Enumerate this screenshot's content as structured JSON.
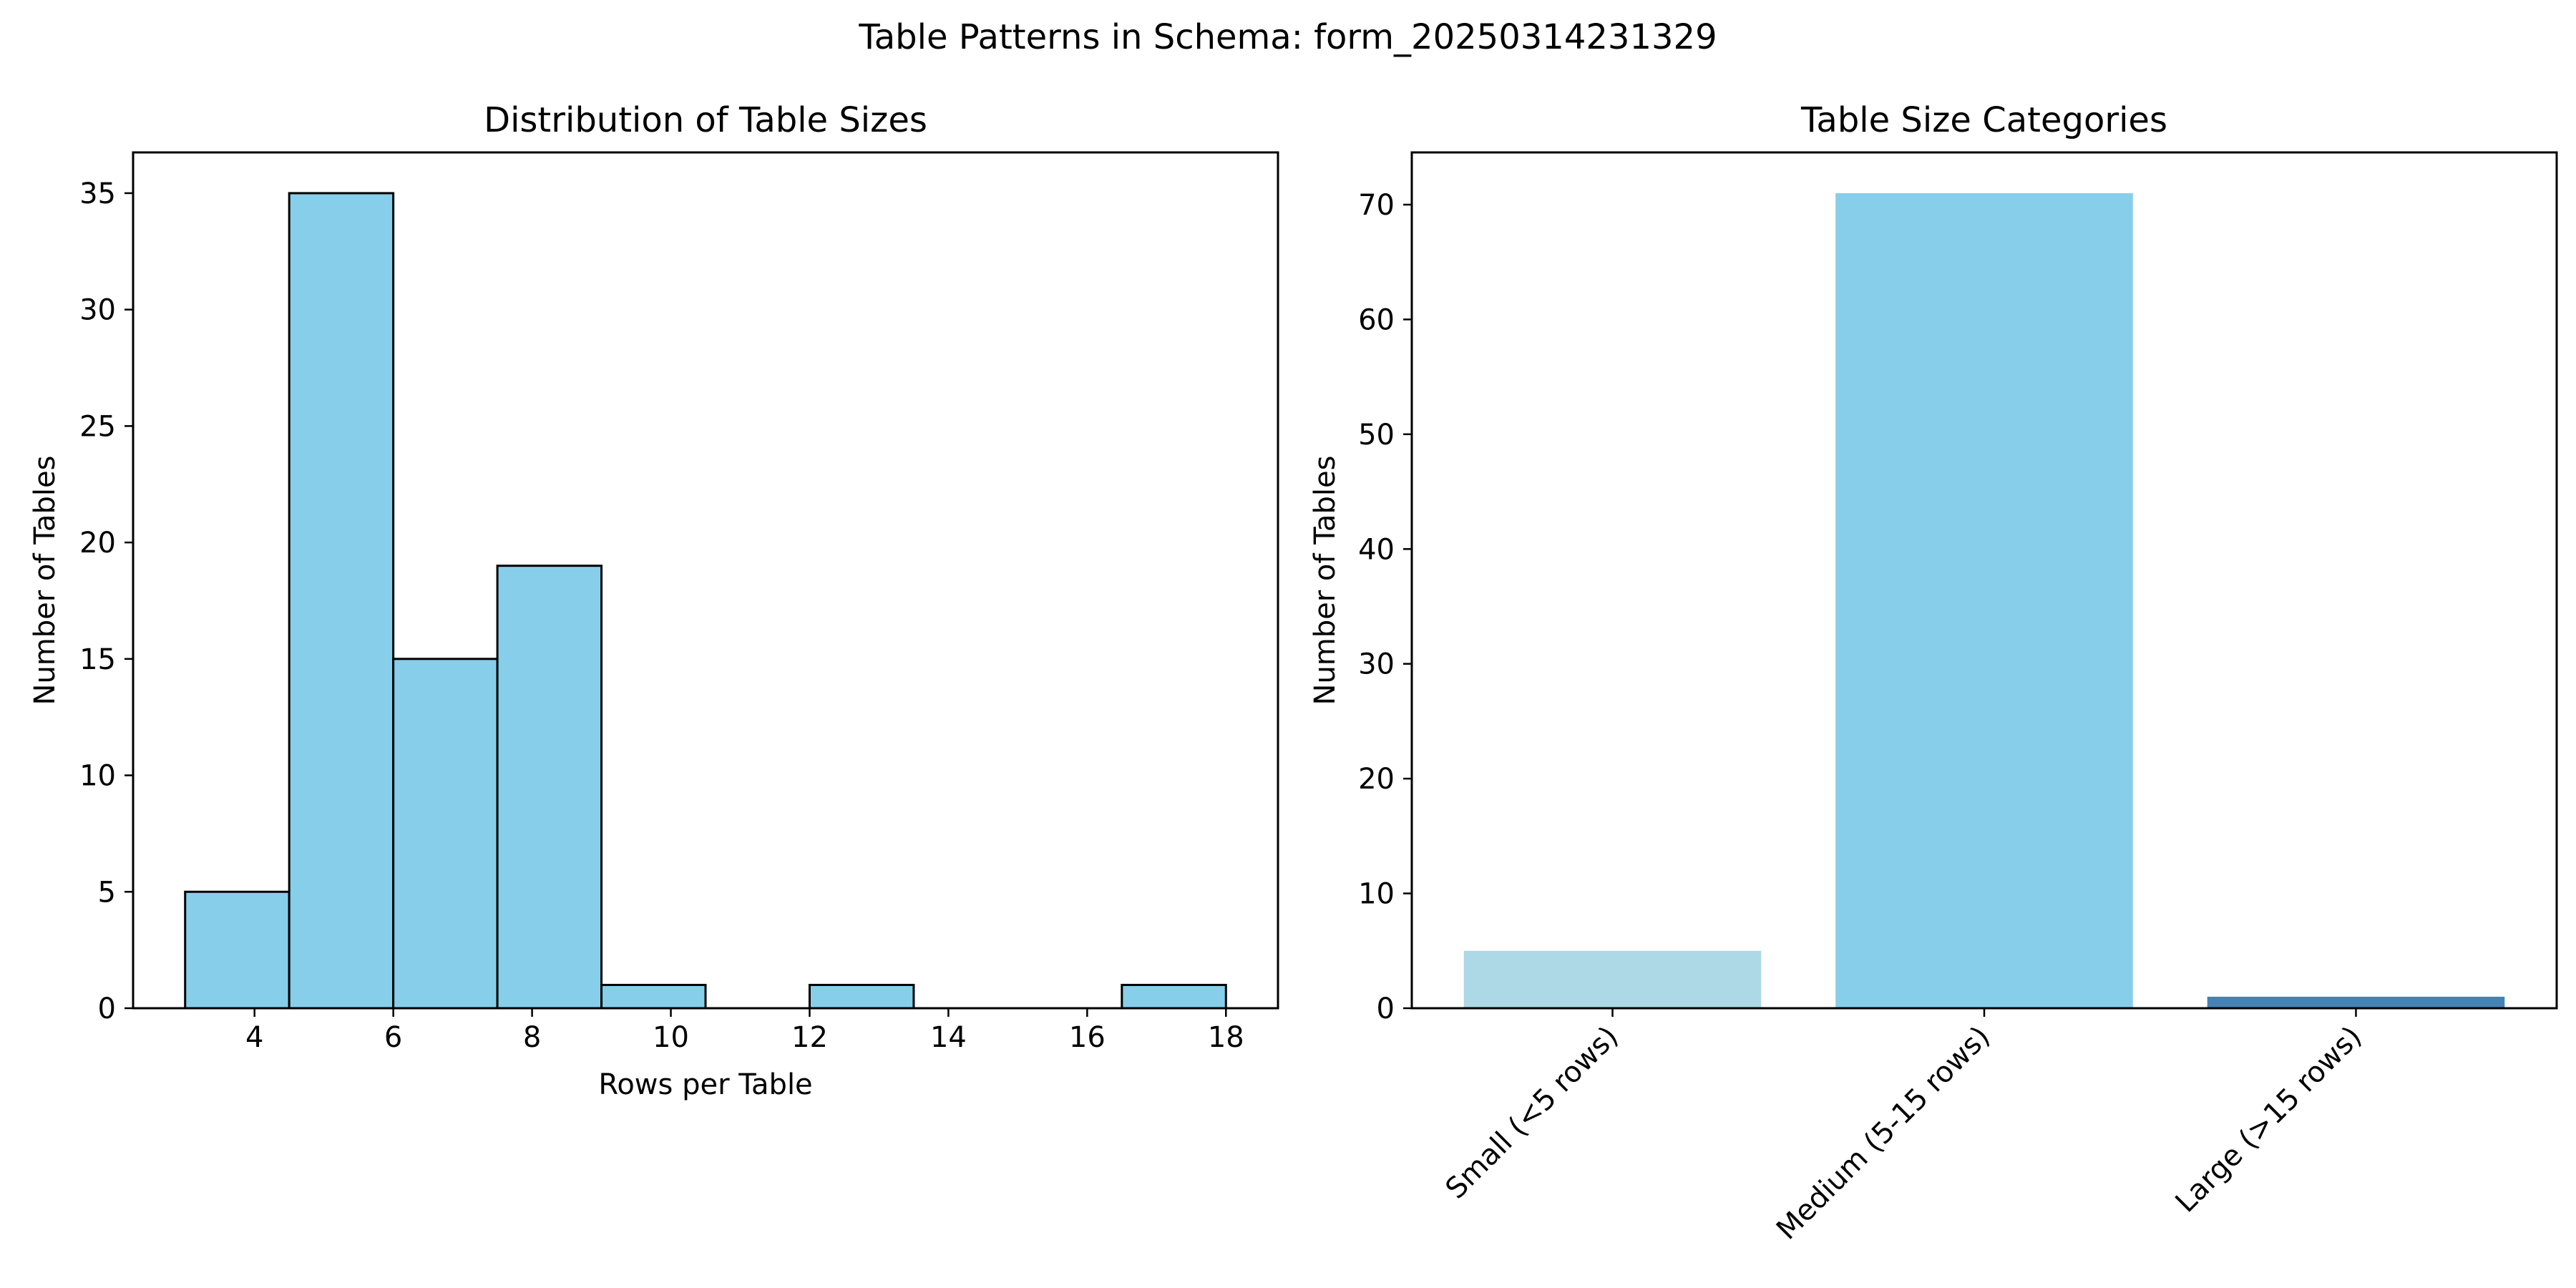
{
  "figure_title": "Table Patterns in Schema: form_20250314231329",
  "chart_data": [
    {
      "type": "bar",
      "subtype": "histogram",
      "title": "Distribution of Table Sizes",
      "xlabel": "Rows per Table",
      "ylabel": "Number of Tables",
      "bins": [
        {
          "x0": 3.0,
          "x1": 4.5,
          "count": 5
        },
        {
          "x0": 4.5,
          "x1": 6.0,
          "count": 35
        },
        {
          "x0": 6.0,
          "x1": 7.5,
          "count": 15
        },
        {
          "x0": 7.5,
          "x1": 9.0,
          "count": 19
        },
        {
          "x0": 9.0,
          "x1": 10.5,
          "count": 1
        },
        {
          "x0": 10.5,
          "x1": 12.0,
          "count": 0
        },
        {
          "x0": 12.0,
          "x1": 13.5,
          "count": 1
        },
        {
          "x0": 13.5,
          "x1": 15.0,
          "count": 0
        },
        {
          "x0": 15.0,
          "x1": 16.5,
          "count": 0
        },
        {
          "x0": 16.5,
          "x1": 18.0,
          "count": 1
        }
      ],
      "xlim": [
        2.25,
        18.75
      ],
      "ylim": [
        0,
        36.75
      ],
      "xticks": [
        4,
        6,
        8,
        10,
        12,
        14,
        16,
        18
      ],
      "yticks": [
        0,
        5,
        10,
        15,
        20,
        25,
        30,
        35
      ],
      "bar_color": "#87ceeb",
      "edge_color": "#000000",
      "grid": false
    },
    {
      "type": "bar",
      "title": "Table Size Categories",
      "xlabel": "",
      "ylabel": "Number of Tables",
      "categories": [
        "Small (<5 rows)",
        "Medium (5-15 rows)",
        "Large (>15 rows)"
      ],
      "values": [
        5,
        71,
        1
      ],
      "colors": [
        "#add8e6",
        "#87ceeb",
        "#4682b4"
      ],
      "ylim": [
        0,
        74.55
      ],
      "yticks": [
        0,
        10,
        20,
        30,
        40,
        50,
        60,
        70
      ],
      "tick_label_rotation": 45,
      "grid": false
    }
  ]
}
